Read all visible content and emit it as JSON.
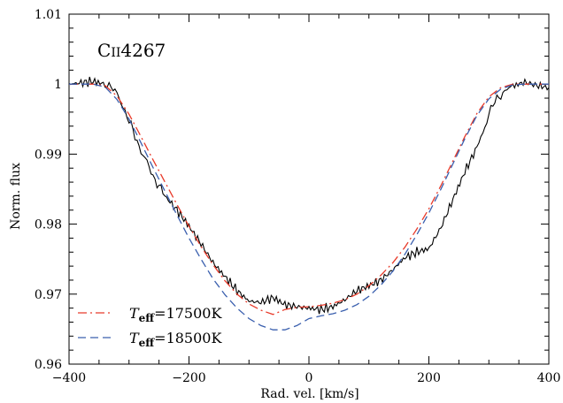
{
  "chart_data": {
    "type": "line",
    "annotation": "CII4267",
    "annotation_parts": {
      "element": "C",
      "ion": "II",
      "wavelength": "4267"
    },
    "xlabel": "Rad. vel. [km/s]",
    "ylabel": "Norm. flux",
    "xlim": [
      -400,
      400
    ],
    "ylim": [
      0.96,
      1.01
    ],
    "x_ticks": [
      -400,
      -200,
      0,
      200,
      400
    ],
    "x_tick_labels": [
      "−400",
      "−200",
      "0",
      "200",
      "400"
    ],
    "y_ticks": [
      0.96,
      0.97,
      0.98,
      0.99,
      1.0,
      1.01
    ],
    "y_tick_labels": [
      "0.96",
      "0.97",
      "0.98",
      "0.99",
      "1",
      "1.01"
    ],
    "grid": false,
    "legend_position": "bottom-left",
    "series": [
      {
        "kind": "observed",
        "color": "#000000",
        "style": "solid",
        "x": [
          -400,
          -380,
          -360,
          -340,
          -330,
          -320,
          -310,
          -300,
          -290,
          -280,
          -270,
          -260,
          -250,
          -240,
          -220,
          -200,
          -180,
          -160,
          -140,
          -120,
          -100,
          -80,
          -60,
          -40,
          -20,
          0,
          20,
          40,
          60,
          80,
          100,
          120,
          140,
          160,
          180,
          200,
          220,
          240,
          260,
          280,
          290,
          300,
          310,
          320,
          330,
          340,
          360,
          380,
          400
        ],
        "y": [
          1.0,
          1.0002,
          1.0004,
          1.0,
          0.9998,
          0.9985,
          0.9968,
          0.9948,
          0.9925,
          0.9905,
          0.9888,
          0.9868,
          0.9855,
          0.984,
          0.982,
          0.9797,
          0.9772,
          0.9745,
          0.9725,
          0.9705,
          0.969,
          0.9688,
          0.9695,
          0.9685,
          0.9682,
          0.968,
          0.9678,
          0.9682,
          0.9692,
          0.9705,
          0.9712,
          0.972,
          0.9735,
          0.9752,
          0.976,
          0.9765,
          0.9795,
          0.9835,
          0.9875,
          0.991,
          0.993,
          0.9958,
          0.9975,
          0.9985,
          0.9992,
          0.9997,
          1.0003,
          0.9998,
          0.9995
        ]
      },
      {
        "name": "T_eff=17500K",
        "legend_T": "T",
        "legend_sub": "eff",
        "legend_value": "=17500K",
        "color": "#e83a2a",
        "style": "dash-dot",
        "x": [
          -400,
          -360,
          -340,
          -320,
          -300,
          -280,
          -260,
          -240,
          -220,
          -200,
          -180,
          -160,
          -140,
          -120,
          -100,
          -80,
          -60,
          -40,
          -20,
          0,
          20,
          40,
          60,
          80,
          100,
          120,
          140,
          160,
          180,
          200,
          220,
          240,
          260,
          280,
          300,
          320,
          340,
          360,
          400
        ],
        "y": [
          1.0,
          1.0,
          0.9998,
          0.9983,
          0.9957,
          0.9925,
          0.9892,
          0.986,
          0.9828,
          0.9797,
          0.9768,
          0.9742,
          0.9719,
          0.97,
          0.9686,
          0.9677,
          0.9671,
          0.9678,
          0.9681,
          0.9682,
          0.9684,
          0.9687,
          0.9692,
          0.97,
          0.9712,
          0.9727,
          0.9745,
          0.9767,
          0.9793,
          0.9822,
          0.9855,
          0.989,
          0.9925,
          0.9958,
          0.9982,
          0.9995,
          1.0,
          1.0,
          1.0
        ]
      },
      {
        "name": "T_eff=18500K",
        "legend_T": "T",
        "legend_sub": "eff",
        "legend_value": "=18500K",
        "color": "#3a5fae",
        "style": "dashed",
        "x": [
          -400,
          -360,
          -340,
          -320,
          -300,
          -280,
          -260,
          -240,
          -220,
          -200,
          -180,
          -160,
          -140,
          -120,
          -100,
          -80,
          -60,
          -40,
          -20,
          0,
          20,
          40,
          60,
          80,
          100,
          120,
          140,
          160,
          180,
          200,
          220,
          240,
          260,
          280,
          300,
          320,
          340,
          360,
          400
        ],
        "y": [
          1.0,
          1.0,
          0.9996,
          0.9978,
          0.995,
          0.9916,
          0.9881,
          0.9847,
          0.9813,
          0.978,
          0.975,
          0.9722,
          0.9699,
          0.968,
          0.9665,
          0.9655,
          0.9649,
          0.9649,
          0.9655,
          0.9665,
          0.9669,
          0.9672,
          0.9677,
          0.9685,
          0.9697,
          0.9713,
          0.9733,
          0.9757,
          0.9785,
          0.9816,
          0.985,
          0.9886,
          0.9922,
          0.9955,
          0.9979,
          0.9993,
          0.9999,
          1.0,
          1.0
        ]
      }
    ]
  }
}
